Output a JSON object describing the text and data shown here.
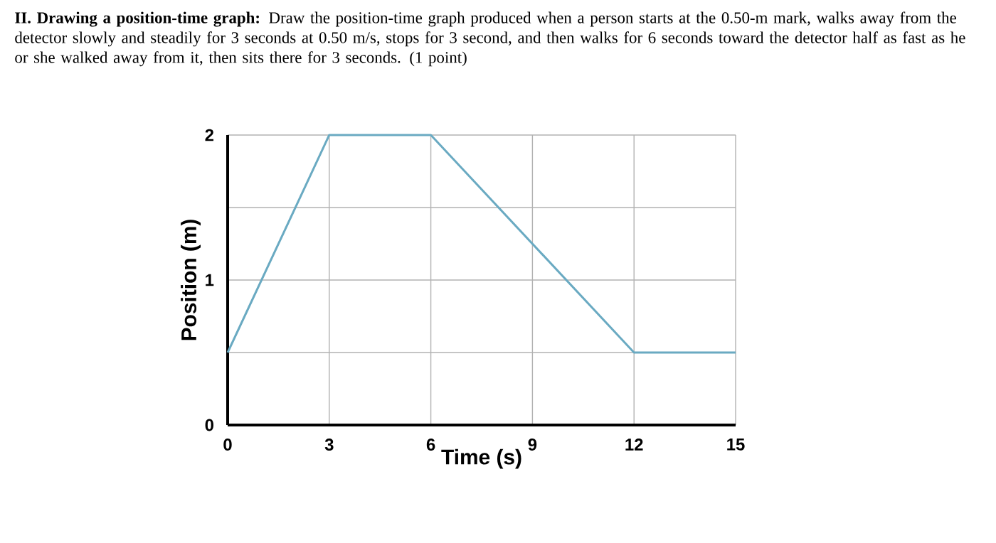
{
  "chart_data": {
    "type": "line",
    "title": "**II. Drawing a position-time graph:** Draw the position-time graph produced when a person starts at the 0.50-m mark, walks away from the detector slowly and steadily for 3 seconds at 0.50 m/s, stops for 3 second, and then walks for 6 seconds toward the detector half as fast as he or she walked away from it, then sits there for 3 seconds. (1 point)",
    "xlabel": "Time (s)",
    "ylabel": "Position (m)",
    "x": [
      0,
      3,
      6,
      12,
      15
    ],
    "series": [
      {
        "color": "#6aaac2",
        "values": [
          0.5,
          2,
          2,
          0.5,
          0.5
        ]
      }
    ],
    "xlim": [
      0,
      15
    ],
    "ylim": [
      0,
      2
    ],
    "xticks": [
      0,
      3,
      6,
      9,
      12,
      15
    ],
    "yticks": [
      0,
      {
        "value": 0.5,
        "label": null
      },
      1,
      {
        "value": 1.5,
        "label": null
      },
      2
    ],
    "grid": true,
    "marker": "none",
    "line_style": "solid"
  }
}
